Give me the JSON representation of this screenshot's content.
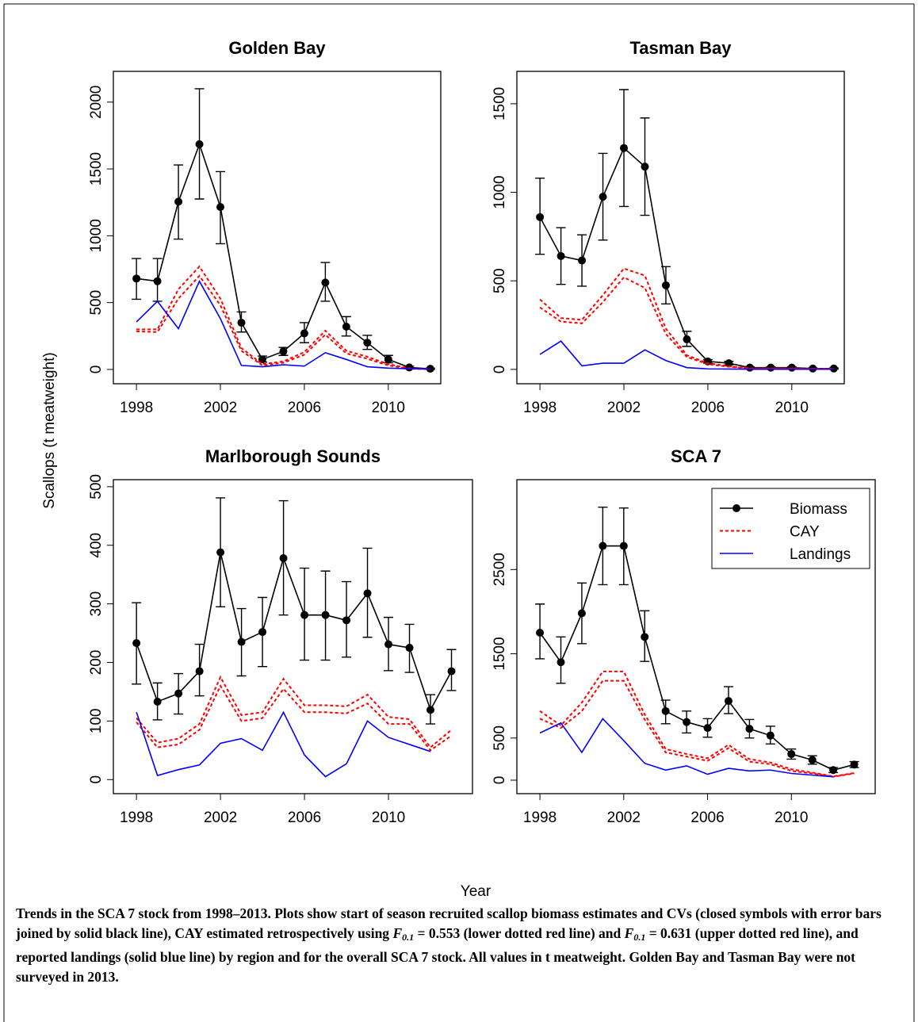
{
  "ylabel": "Scallops (t meatweight)",
  "xlabel": "Year",
  "caption": [
    "Trends in the SCA 7 stock from 1998–2013. Plots show start of season recruited scallop biomass estimates and CVs (closed symbols with error bars joined by solid black line), CAY estimated retrospectively using ",
    "F",
    "0.1",
    " = 0.553 (lower dotted red line) and ",
    "F",
    "0.1",
    " = 0.631 (upper dotted red line), and reported landings (solid blue line) by region and for the overall SCA 7 stock. All values in t meatweight. Golden Bay and Tasman Bay were not surveyed in 2013."
  ],
  "chart_data": [
    {
      "type": "line",
      "title": "Golden Bay",
      "x": [
        1998,
        1999,
        2000,
        2001,
        2002,
        2003,
        2004,
        2005,
        2006,
        2007,
        2008,
        2009,
        2010,
        2011,
        2012
      ],
      "xlim": [
        1996.9,
        2012.5
      ],
      "xticks": [
        1998,
        2002,
        2006,
        2010
      ],
      "ylim": [
        -107,
        2230
      ],
      "yticks": [
        0,
        500,
        1000,
        1500,
        2000
      ],
      "series": [
        {
          "color": "#000000",
          "values": [
            680,
            660,
            1255,
            1685,
            1215,
            350,
            75,
            135,
            270,
            650,
            320,
            200,
            75,
            15,
            5
          ],
          "error_low": [
            525,
            510,
            975,
            1275,
            940,
            280,
            55,
            105,
            200,
            510,
            250,
            150,
            50,
            5,
            0
          ],
          "error_high": [
            830,
            830,
            1530,
            2100,
            1480,
            430,
            100,
            165,
            350,
            800,
            395,
            255,
            105,
            25,
            10
          ]
        },
        {
          "color": "#ff0000",
          "values": [
            285,
            280,
            530,
            700,
            480,
            140,
            30,
            50,
            110,
            260,
            120,
            80,
            30,
            5,
            2
          ],
          "values_upper": [
            300,
            300,
            600,
            770,
            530,
            160,
            40,
            60,
            130,
            290,
            140,
            95,
            40,
            8,
            3
          ]
        },
        {
          "color": "#0000ff",
          "values": [
            355,
            510,
            305,
            660,
            380,
            30,
            20,
            35,
            25,
            125,
            75,
            20,
            10,
            5,
            2
          ]
        }
      ]
    },
    {
      "type": "line",
      "title": "Tasman Bay",
      "x": [
        1998,
        1999,
        2000,
        2001,
        2002,
        2003,
        2004,
        2005,
        2006,
        2007,
        2008,
        2009,
        2010,
        2011,
        2012
      ],
      "xlim": [
        1996.9,
        2012.5
      ],
      "xticks": [
        1998,
        2002,
        2006,
        2010
      ],
      "ylim": [
        -81,
        1683
      ],
      "yticks": [
        0,
        500,
        1000,
        1500
      ],
      "series": [
        {
          "color": "#000000",
          "values": [
            860,
            640,
            615,
            975,
            1250,
            1145,
            475,
            170,
            45,
            35,
            10,
            10,
            10,
            5,
            5
          ],
          "error_low": [
            650,
            480,
            470,
            730,
            920,
            870,
            370,
            130,
            35,
            25,
            5,
            5,
            5,
            2,
            2
          ],
          "error_high": [
            1080,
            800,
            760,
            1220,
            1580,
            1420,
            580,
            215,
            55,
            45,
            15,
            15,
            15,
            8,
            8
          ]
        },
        {
          "color": "#ff0000",
          "values": [
            350,
            270,
            260,
            380,
            520,
            460,
            200,
            70,
            30,
            15,
            5,
            5,
            5,
            3,
            3
          ],
          "values_upper": [
            395,
            290,
            280,
            420,
            570,
            530,
            230,
            80,
            35,
            18,
            6,
            6,
            6,
            4,
            4
          ]
        },
        {
          "color": "#0000ff",
          "values": [
            85,
            160,
            20,
            35,
            35,
            110,
            50,
            10,
            3,
            2,
            1,
            1,
            1,
            1,
            1
          ]
        }
      ]
    },
    {
      "type": "line",
      "title": "Marlborough Sounds",
      "x": [
        1998,
        1999,
        2000,
        2001,
        2002,
        2003,
        2004,
        2005,
        2006,
        2007,
        2008,
        2009,
        2010,
        2011,
        2012,
        2013
      ],
      "xlim": [
        1996.9,
        2014
      ],
      "xticks": [
        1998,
        2002,
        2006,
        2010
      ],
      "ylim": [
        -24,
        512
      ],
      "yticks": [
        0,
        100,
        200,
        300,
        400,
        500
      ],
      "series": [
        {
          "color": "#000000",
          "values": [
            233,
            133,
            147,
            185,
            388,
            235,
            252,
            378,
            281,
            281,
            272,
            318,
            231,
            225,
            119,
            185
          ],
          "error_low": [
            163,
            102,
            112,
            143,
            295,
            177,
            193,
            281,
            204,
            204,
            209,
            243,
            186,
            183,
            95,
            152
          ],
          "error_high": [
            302,
            165,
            181,
            231,
            481,
            292,
            311,
            476,
            361,
            356,
            338,
            395,
            277,
            265,
            145,
            222
          ]
        },
        {
          "color": "#ff0000",
          "values": [
            98,
            55,
            60,
            85,
            160,
            100,
            105,
            155,
            115,
            115,
            113,
            130,
            95,
            95,
            50,
            75
          ],
          "values_upper": [
            105,
            63,
            70,
            95,
            175,
            110,
            115,
            172,
            127,
            127,
            125,
            145,
            107,
            103,
            55,
            85
          ]
        },
        {
          "color": "#0000ff",
          "values": [
            115,
            7,
            17,
            25,
            62,
            70,
            50,
            115,
            42,
            5,
            27,
            100,
            72,
            60,
            48,
            null
          ]
        }
      ]
    },
    {
      "type": "line",
      "title": "SCA 7",
      "x": [
        1998,
        1999,
        2000,
        2001,
        2002,
        2003,
        2004,
        2005,
        2006,
        2007,
        2008,
        2009,
        2010,
        2011,
        2012,
        2013
      ],
      "xlim": [
        1996.9,
        2014
      ],
      "xticks": [
        1998,
        2002,
        2006,
        2010
      ],
      "ylim": [
        -160,
        3566
      ],
      "yticks": [
        0,
        500,
        1500,
        2500
      ],
      "legend": "topright",
      "series": [
        {
          "name": "Biomass",
          "color": "#000000",
          "values": [
            1750,
            1400,
            1980,
            2780,
            2780,
            1700,
            820,
            690,
            620,
            940,
            610,
            530,
            310,
            240,
            120,
            185
          ],
          "error_low": [
            1440,
            1150,
            1620,
            2320,
            2320,
            1410,
            670,
            560,
            510,
            790,
            500,
            430,
            250,
            190,
            90,
            150
          ],
          "error_high": [
            2090,
            1700,
            2340,
            3240,
            3230,
            2010,
            950,
            820,
            730,
            1110,
            720,
            640,
            370,
            290,
            150,
            220
          ]
        },
        {
          "name": "CAY",
          "color": "#ff0000",
          "values": [
            730,
            620,
            820,
            1180,
            1180,
            720,
            330,
            280,
            230,
            380,
            220,
            190,
            110,
            80,
            40,
            80
          ],
          "values_upper": [
            820,
            650,
            920,
            1290,
            1290,
            780,
            370,
            310,
            260,
            420,
            250,
            210,
            130,
            90,
            45,
            85
          ]
        },
        {
          "name": "Landings",
          "color": "#0000ff",
          "values": [
            560,
            680,
            330,
            730,
            470,
            200,
            120,
            170,
            70,
            140,
            110,
            120,
            80,
            60,
            40,
            null
          ]
        }
      ]
    }
  ]
}
